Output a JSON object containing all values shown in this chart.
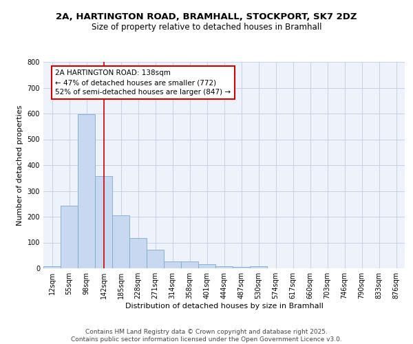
{
  "title_line1": "2A, HARTINGTON ROAD, BRAMHALL, STOCKPORT, SK7 2DZ",
  "title_line2": "Size of property relative to detached houses in Bramhall",
  "xlabel": "Distribution of detached houses by size in Bramhall",
  "ylabel": "Number of detached properties",
  "bar_color": "#c8d8f0",
  "bar_edge_color": "#7aaad0",
  "background_color": "#eef2fb",
  "grid_color": "#c8d0e8",
  "vline_color": "#cc0000",
  "annotation_box_edge_color": "#cc0000",
  "categories": [
    "12sqm",
    "55sqm",
    "98sqm",
    "142sqm",
    "185sqm",
    "228sqm",
    "271sqm",
    "314sqm",
    "358sqm",
    "401sqm",
    "444sqm",
    "487sqm",
    "530sqm",
    "574sqm",
    "617sqm",
    "660sqm",
    "703sqm",
    "746sqm",
    "790sqm",
    "833sqm",
    "876sqm"
  ],
  "values": [
    8,
    242,
    597,
    357,
    206,
    118,
    72,
    28,
    27,
    15,
    7,
    5,
    8,
    0,
    0,
    0,
    0,
    0,
    0,
    0,
    0
  ],
  "vline_position": 3,
  "annotation_line1": "2A HARTINGTON ROAD: 138sqm",
  "annotation_line2": "← 47% of detached houses are smaller (772)",
  "annotation_line3": "52% of semi-detached houses are larger (847) →",
  "ylim": [
    0,
    800
  ],
  "yticks": [
    0,
    100,
    200,
    300,
    400,
    500,
    600,
    700,
    800
  ],
  "footer_text": "Contains HM Land Registry data © Crown copyright and database right 2025.\nContains public sector information licensed under the Open Government Licence v3.0.",
  "title_fontsize": 9.5,
  "subtitle_fontsize": 8.5,
  "axis_label_fontsize": 8,
  "tick_fontsize": 7,
  "annotation_fontsize": 7.5,
  "footer_fontsize": 6.5
}
